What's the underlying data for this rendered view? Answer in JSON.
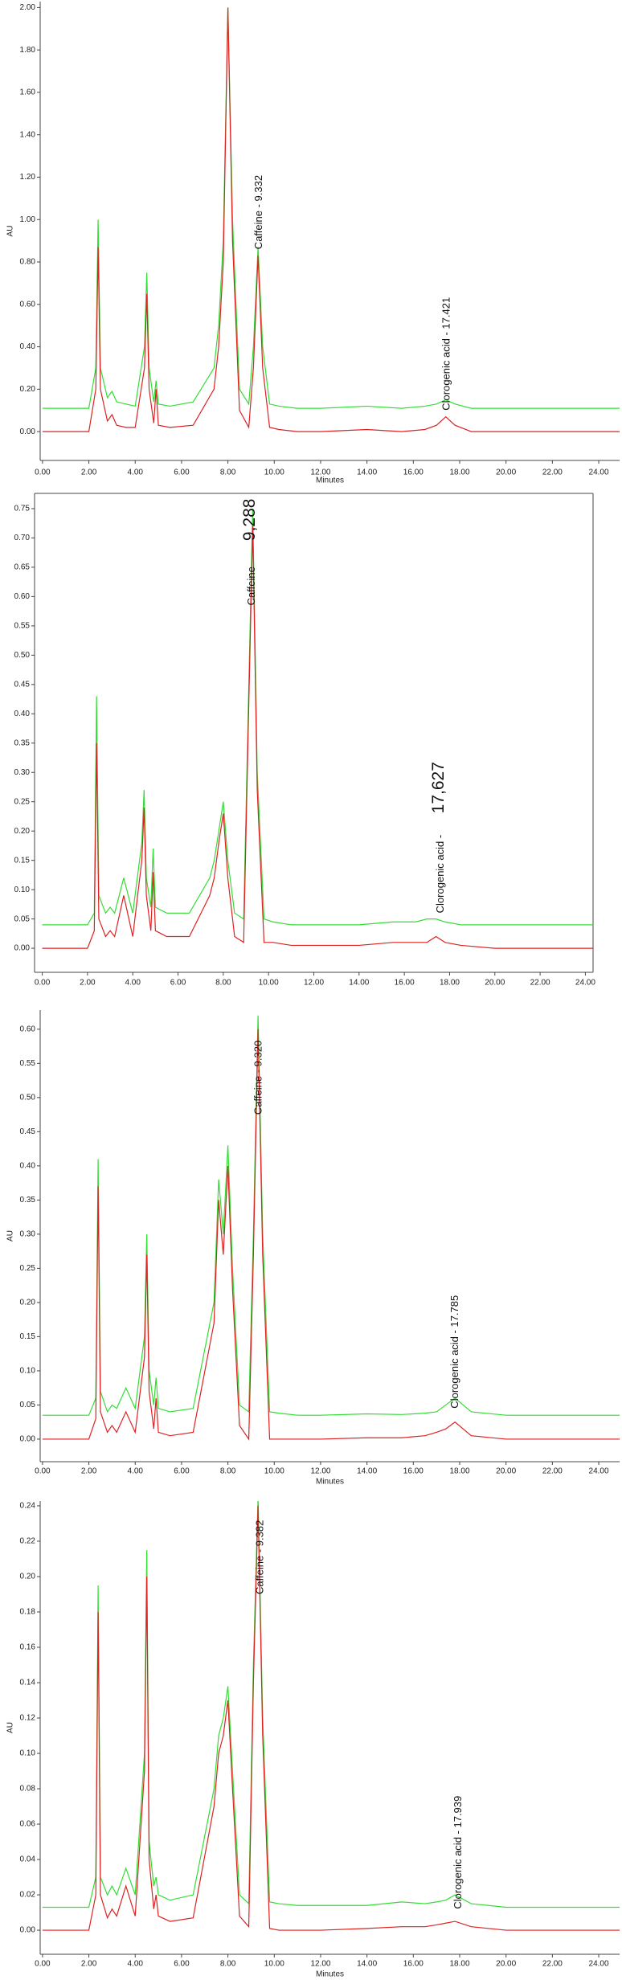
{
  "chart_data": [
    {
      "type": "line",
      "ylabel": "AU",
      "xlabel": "Minutes",
      "x": [
        0,
        2.0,
        2.3,
        2.4,
        2.5,
        2.8,
        3.0,
        3.2,
        3.6,
        4.0,
        4.4,
        4.5,
        4.6,
        4.8,
        4.9,
        5.0,
        5.5,
        6.5,
        7.4,
        7.6,
        7.8,
        8.0,
        8.2,
        8.5,
        8.9,
        9.1,
        9.3,
        9.5,
        9.8,
        10.2,
        11,
        12,
        14,
        15.5,
        16.5,
        17.0,
        17.4,
        17.8,
        18.5,
        20,
        22,
        25
      ],
      "series": [
        {
          "color": "#33dd33",
          "values": [
            0.11,
            0.11,
            0.3,
            1.0,
            0.3,
            0.16,
            0.19,
            0.14,
            0.13,
            0.12,
            0.4,
            0.75,
            0.3,
            0.14,
            0.24,
            0.13,
            0.12,
            0.14,
            0.3,
            0.5,
            0.9,
            2.0,
            1.0,
            0.2,
            0.13,
            0.4,
            0.87,
            0.4,
            0.13,
            0.12,
            0.11,
            0.11,
            0.12,
            0.11,
            0.12,
            0.13,
            0.15,
            0.13,
            0.11,
            0.11,
            0.11,
            0.11
          ]
        },
        {
          "color": "#dd2222",
          "values": [
            0,
            0,
            0.2,
            0.87,
            0.2,
            0.05,
            0.08,
            0.03,
            0.02,
            0.02,
            0.3,
            0.65,
            0.2,
            0.04,
            0.2,
            0.03,
            0.02,
            0.03,
            0.2,
            0.4,
            0.8,
            2.0,
            0.9,
            0.1,
            0.02,
            0.3,
            0.83,
            0.3,
            0.02,
            0.01,
            0,
            0,
            0.01,
            0,
            0.01,
            0.03,
            0.07,
            0.03,
            0,
            0,
            0,
            0
          ]
        }
      ],
      "xlim": [
        -0.1,
        24.9
      ],
      "ylim": [
        -0.136,
        2.028
      ],
      "xticks": [
        {
          "value": 0,
          "label": "0.00"
        },
        {
          "value": 2,
          "label": "2.00"
        },
        {
          "value": 4,
          "label": "4.00"
        },
        {
          "value": 6,
          "label": "6.00"
        },
        {
          "value": 8,
          "label": "8.00"
        },
        {
          "value": 10,
          "label": "10.00"
        },
        {
          "value": 12,
          "label": "12.00"
        },
        {
          "value": 14,
          "label": "14.00"
        },
        {
          "value": 16,
          "label": "16.00"
        },
        {
          "value": 18,
          "label": "18.00"
        },
        {
          "value": 20,
          "label": "20.00"
        },
        {
          "value": 22,
          "label": "22.00"
        },
        {
          "value": 24,
          "label": "24.00"
        }
      ],
      "yticks": [
        {
          "value": 0,
          "label": "0.00"
        },
        {
          "value": 0.2,
          "label": "0.20"
        },
        {
          "value": 0.4,
          "label": "0.40"
        },
        {
          "value": 0.6,
          "label": "0.60"
        },
        {
          "value": 0.8,
          "label": "0.80"
        },
        {
          "value": 1.0,
          "label": "1.00"
        },
        {
          "value": 1.2,
          "label": "1.20"
        },
        {
          "value": 1.4,
          "label": "1.40"
        },
        {
          "value": 1.6,
          "label": "1.60"
        },
        {
          "value": 1.8,
          "label": "1.80"
        },
        {
          "value": 2.0,
          "label": "2.00"
        }
      ],
      "annotations": [
        {
          "text": "Caffeine - 9.332",
          "x": 9.332,
          "y": 0.86
        },
        {
          "text": "Clorogenic acid - 17.421",
          "x": 17.421,
          "y": 0.1
        }
      ]
    },
    {
      "type": "line",
      "x": [
        0,
        2.0,
        2.3,
        2.4,
        2.5,
        2.8,
        3.0,
        3.2,
        3.6,
        4.0,
        4.4,
        4.5,
        4.6,
        4.8,
        4.9,
        5.0,
        5.5,
        6.5,
        7.4,
        7.6,
        7.8,
        8.0,
        8.2,
        8.5,
        8.9,
        9.1,
        9.3,
        9.5,
        9.8,
        10.2,
        11,
        12,
        14,
        15.5,
        16.5,
        17.0,
        17.4,
        17.8,
        18.5,
        20,
        22,
        25
      ],
      "series": [
        {
          "color": "#33dd33",
          "values": [
            0.04,
            0.04,
            0.06,
            0.43,
            0.09,
            0.06,
            0.07,
            0.06,
            0.12,
            0.06,
            0.18,
            0.27,
            0.12,
            0.07,
            0.17,
            0.07,
            0.06,
            0.06,
            0.12,
            0.15,
            0.2,
            0.25,
            0.15,
            0.06,
            0.05,
            0.4,
            0.75,
            0.3,
            0.05,
            0.045,
            0.04,
            0.04,
            0.04,
            0.045,
            0.045,
            0.05,
            0.05,
            0.045,
            0.04,
            0.04,
            0.04,
            0.04
          ]
        },
        {
          "color": "#dd2222",
          "values": [
            0,
            0,
            0.03,
            0.35,
            0.05,
            0.02,
            0.03,
            0.02,
            0.09,
            0.02,
            0.15,
            0.24,
            0.09,
            0.03,
            0.13,
            0.03,
            0.02,
            0.02,
            0.09,
            0.12,
            0.18,
            0.23,
            0.12,
            0.02,
            0.01,
            0.37,
            0.72,
            0.27,
            0.01,
            0.01,
            0.005,
            0.005,
            0.005,
            0.01,
            0.01,
            0.01,
            0.02,
            0.01,
            0.005,
            0,
            0,
            0
          ]
        }
      ],
      "xlim": [
        -0.34,
        24.34
      ],
      "ylim": [
        -0.041,
        0.776
      ],
      "xticks": [
        {
          "value": 0,
          "label": "0.00"
        },
        {
          "value": 2,
          "label": "2.00"
        },
        {
          "value": 4,
          "label": "4.00"
        },
        {
          "value": 6,
          "label": "6.00"
        },
        {
          "value": 8,
          "label": "8.00"
        },
        {
          "value": 10,
          "label": "10.00"
        },
        {
          "value": 12,
          "label": "12.00"
        },
        {
          "value": 14,
          "label": "14.00"
        },
        {
          "value": 16,
          "label": "16.00"
        },
        {
          "value": 18,
          "label": "18.00"
        },
        {
          "value": 20,
          "label": "20.00"
        },
        {
          "value": 22,
          "label": "22.00"
        },
        {
          "value": 24,
          "label": "24.00"
        }
      ],
      "yticks": [
        {
          "value": 0,
          "label": "0.00"
        },
        {
          "value": 0.05,
          "label": "0.05"
        },
        {
          "value": 0.1,
          "label": "0.10"
        },
        {
          "value": 0.15,
          "label": "0.15"
        },
        {
          "value": 0.2,
          "label": "0.20"
        },
        {
          "value": 0.25,
          "label": "0.25"
        },
        {
          "value": 0.3,
          "label": "0.30"
        },
        {
          "value": 0.35,
          "label": "0.35"
        },
        {
          "value": 0.4,
          "label": "0.40"
        },
        {
          "value": 0.45,
          "label": "0.45"
        },
        {
          "value": 0.5,
          "label": "0.50"
        },
        {
          "value": 0.55,
          "label": "0.55"
        },
        {
          "value": 0.6,
          "label": "0.60"
        },
        {
          "value": 0.65,
          "label": "0.65"
        },
        {
          "value": 0.7,
          "label": "0.70"
        },
        {
          "value": 0.75,
          "label": "0.75"
        }
      ],
      "annotations": [
        {
          "text": "Caffeine",
          "x": 9.25,
          "y": 0.585
        },
        {
          "text": "9,288",
          "x": 9.25,
          "y": 0.695
        },
        {
          "text": "Clorogenic acid -",
          "x": 17.6,
          "y": 0.06
        },
        {
          "text": "17,627",
          "x": 17.6,
          "y": 0.23
        }
      ]
    },
    {
      "type": "line",
      "ylabel": "AU",
      "xlabel": "Minutes",
      "x": [
        0,
        2.0,
        2.3,
        2.4,
        2.5,
        2.8,
        3.0,
        3.2,
        3.6,
        4.0,
        4.4,
        4.5,
        4.6,
        4.8,
        4.9,
        5.0,
        5.5,
        6.5,
        7.4,
        7.6,
        7.8,
        8.0,
        8.2,
        8.5,
        8.9,
        9.1,
        9.3,
        9.5,
        9.8,
        10.2,
        11,
        12,
        14,
        15.5,
        16.5,
        17.0,
        17.4,
        17.8,
        18.5,
        20,
        22,
        25
      ],
      "series": [
        {
          "color": "#33dd33",
          "values": [
            0.035,
            0.035,
            0.06,
            0.41,
            0.07,
            0.04,
            0.05,
            0.045,
            0.075,
            0.045,
            0.15,
            0.3,
            0.1,
            0.05,
            0.09,
            0.045,
            0.04,
            0.045,
            0.2,
            0.38,
            0.3,
            0.43,
            0.25,
            0.05,
            0.04,
            0.3,
            0.62,
            0.3,
            0.04,
            0.038,
            0.035,
            0.035,
            0.037,
            0.036,
            0.038,
            0.04,
            0.05,
            0.06,
            0.04,
            0.035,
            0.035,
            0.035
          ]
        },
        {
          "color": "#dd2222",
          "values": [
            0,
            0,
            0.03,
            0.37,
            0.04,
            0.01,
            0.02,
            0.01,
            0.04,
            0.01,
            0.12,
            0.27,
            0.07,
            0.015,
            0.06,
            0.01,
            0.005,
            0.01,
            0.17,
            0.35,
            0.27,
            0.4,
            0.22,
            0.02,
            0,
            0.27,
            0.6,
            0.27,
            0,
            0,
            0,
            0,
            0.002,
            0.002,
            0.005,
            0.01,
            0.015,
            0.025,
            0.005,
            0,
            0,
            0
          ]
        }
      ],
      "xlim": [
        -0.1,
        24.9
      ],
      "ylim": [
        -0.033,
        0.628
      ],
      "xticks": [
        {
          "value": 0,
          "label": "0.00"
        },
        {
          "value": 2,
          "label": "2.00"
        },
        {
          "value": 4,
          "label": "4.00"
        },
        {
          "value": 6,
          "label": "6.00"
        },
        {
          "value": 8,
          "label": "8.00"
        },
        {
          "value": 10,
          "label": "10.00"
        },
        {
          "value": 12,
          "label": "12.00"
        },
        {
          "value": 14,
          "label": "14.00"
        },
        {
          "value": 16,
          "label": "16.00"
        },
        {
          "value": 18,
          "label": "18.00"
        },
        {
          "value": 20,
          "label": "20.00"
        },
        {
          "value": 22,
          "label": "22.00"
        },
        {
          "value": 24,
          "label": "24.00"
        }
      ],
      "yticks": [
        {
          "value": 0,
          "label": "0.00"
        },
        {
          "value": 0.05,
          "label": "0.05"
        },
        {
          "value": 0.1,
          "label": "0.10"
        },
        {
          "value": 0.15,
          "label": "0.15"
        },
        {
          "value": 0.2,
          "label": "0.20"
        },
        {
          "value": 0.25,
          "label": "0.25"
        },
        {
          "value": 0.3,
          "label": "0.30"
        },
        {
          "value": 0.35,
          "label": "0.35"
        },
        {
          "value": 0.4,
          "label": "0.40"
        },
        {
          "value": 0.45,
          "label": "0.45"
        },
        {
          "value": 0.5,
          "label": "0.50"
        },
        {
          "value": 0.55,
          "label": "0.55"
        },
        {
          "value": 0.6,
          "label": "0.60"
        }
      ],
      "annotations": [
        {
          "text": "Caffeine - 9.320",
          "x": 9.32,
          "y": 0.475
        },
        {
          "text": "Clorogenic acid - 17.785",
          "x": 17.785,
          "y": 0.045
        }
      ]
    },
    {
      "type": "line",
      "ylabel": "AU",
      "xlabel": "Minutes",
      "x": [
        0,
        2.0,
        2.3,
        2.4,
        2.5,
        2.8,
        3.0,
        3.2,
        3.6,
        4.0,
        4.4,
        4.5,
        4.6,
        4.8,
        4.9,
        5.0,
        5.5,
        6.5,
        7.4,
        7.6,
        7.8,
        8.0,
        8.2,
        8.5,
        8.9,
        9.1,
        9.3,
        9.5,
        9.8,
        10.2,
        11,
        12,
        14,
        15.5,
        16.5,
        17.0,
        17.4,
        17.8,
        18.5,
        20,
        22,
        25
      ],
      "series": [
        {
          "color": "#33dd33",
          "values": [
            0.013,
            0.013,
            0.03,
            0.195,
            0.03,
            0.02,
            0.025,
            0.02,
            0.035,
            0.02,
            0.1,
            0.215,
            0.05,
            0.025,
            0.03,
            0.02,
            0.017,
            0.02,
            0.08,
            0.11,
            0.12,
            0.138,
            0.09,
            0.02,
            0.015,
            0.15,
            0.245,
            0.12,
            0.016,
            0.015,
            0.014,
            0.014,
            0.014,
            0.016,
            0.015,
            0.016,
            0.017,
            0.02,
            0.015,
            0.013,
            0.013,
            0.013
          ]
        },
        {
          "color": "#dd2222",
          "values": [
            0,
            0,
            0.02,
            0.18,
            0.02,
            0.007,
            0.012,
            0.008,
            0.025,
            0.008,
            0.09,
            0.2,
            0.04,
            0.012,
            0.02,
            0.008,
            0.005,
            0.007,
            0.07,
            0.1,
            0.11,
            0.13,
            0.08,
            0.008,
            0.002,
            0.14,
            0.24,
            0.11,
            0.001,
            0,
            0,
            0,
            0.001,
            0.002,
            0.002,
            0.003,
            0.004,
            0.005,
            0.002,
            0,
            0,
            0
          ]
        }
      ],
      "xlim": [
        -0.1,
        24.9
      ],
      "ylim": [
        -0.0136,
        0.2427
      ],
      "xticks": [
        {
          "value": 0,
          "label": "0.00"
        },
        {
          "value": 2,
          "label": "2.00"
        },
        {
          "value": 4,
          "label": "4.00"
        },
        {
          "value": 6,
          "label": "6.00"
        },
        {
          "value": 8,
          "label": "8.00"
        },
        {
          "value": 10,
          "label": "10.00"
        },
        {
          "value": 12,
          "label": "12.00"
        },
        {
          "value": 14,
          "label": "14.00"
        },
        {
          "value": 16,
          "label": "16.00"
        },
        {
          "value": 18,
          "label": "18.00"
        },
        {
          "value": 20,
          "label": "20.00"
        },
        {
          "value": 22,
          "label": "22.00"
        },
        {
          "value": 24,
          "label": "24.00"
        }
      ],
      "yticks": [
        {
          "value": 0,
          "label": "0.00"
        },
        {
          "value": 0.02,
          "label": "0.02"
        },
        {
          "value": 0.04,
          "label": "0.04"
        },
        {
          "value": 0.06,
          "label": "0.06"
        },
        {
          "value": 0.08,
          "label": "0.08"
        },
        {
          "value": 0.1,
          "label": "0.10"
        },
        {
          "value": 0.12,
          "label": "0.12"
        },
        {
          "value": 0.14,
          "label": "0.14"
        },
        {
          "value": 0.16,
          "label": "0.16"
        },
        {
          "value": 0.18,
          "label": "0.18"
        },
        {
          "value": 0.2,
          "label": "0.20"
        },
        {
          "value": 0.22,
          "label": "0.22"
        },
        {
          "value": 0.24,
          "label": "0.24"
        }
      ],
      "annotations": [
        {
          "text": "Caffeine - 9.382",
          "x": 9.382,
          "y": 0.19
        },
        {
          "text": "Clorogenic acid - 17.939",
          "x": 17.939,
          "y": 0.012
        }
      ]
    }
  ]
}
